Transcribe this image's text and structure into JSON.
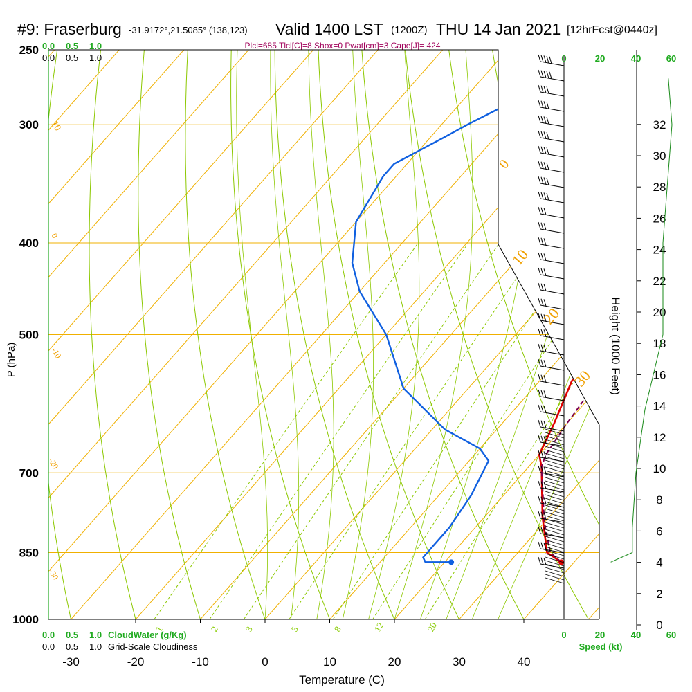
{
  "header": {
    "station": "#9: Fraserburg",
    "coords": "-31.9172°,21.5085° (138,123)",
    "valid": "Valid 1400 LST",
    "utc": "(1200Z)",
    "date": "THU 14 Jan 2021",
    "forecast": "[12hrFcst@0440z]"
  },
  "indices_line": "Plcl=685 Tlcl[C]=8 Shox=0 Pwat[cm]=3 Cape[J]= 424",
  "colors": {
    "temperature": "#e00000",
    "dewpoint": "#1060e0",
    "parcel": "#7a0050",
    "isotherm": "#f0b000",
    "dry_adiabat": "#8cc800",
    "mixing_ratio": "#8cc800",
    "axis_green": "#22aa22",
    "windspeed": "#1a8a1a"
  },
  "chart_data": {
    "type": "line",
    "title": "#9: Fraserburg",
    "xlabel": "Temperature (C)",
    "ylabel": "P (hPa)",
    "y2label": "Height (1000 Feet)",
    "y_scale": "log",
    "ylim": [
      1000,
      250
    ],
    "x_ticks": [
      -30,
      -20,
      -10,
      0,
      10,
      20,
      30,
      40
    ],
    "p_ticks": [
      250,
      300,
      400,
      500,
      700,
      850,
      1000
    ],
    "height_ticks": [
      0,
      2,
      4,
      6,
      8,
      10,
      12,
      14,
      16,
      18,
      20,
      22,
      24,
      26,
      28,
      30,
      32
    ],
    "isotherm_labels": [
      "10",
      "0",
      "-10",
      "-20",
      "-30",
      "0",
      "10",
      "20",
      "30"
    ],
    "mixing_ratio_labels": [
      "1",
      "2",
      "3",
      "5",
      "8",
      "12",
      "20"
    ],
    "cloud_axis": {
      "top_green": [
        "0.0",
        "0.5",
        "1.0"
      ],
      "top_black": [
        "0.0",
        "0.5",
        "1.0"
      ],
      "bottom_green": [
        "0.0",
        "0.5",
        "1.0"
      ],
      "bottom_black": [
        "0.0",
        "0.5",
        "1.0"
      ],
      "cloud_water_label": "CloudWater (g/Kg)",
      "cloudiness_label": "Grid-Scale Cloudiness"
    },
    "speed_axis": {
      "top_black": [
        "0",
        "20",
        "40"
      ],
      "top_green": [
        "20",
        "40",
        "60"
      ],
      "bottom_black": [
        "0",
        "20",
        "40"
      ],
      "bottom_green": [
        "20",
        "40",
        "60"
      ],
      "label": "Speed (kt)"
    },
    "series": [
      {
        "name": "Temperature",
        "points": [
          [
            38,
            870
          ],
          [
            34.5,
            850
          ],
          [
            29,
            780
          ],
          [
            22,
            690
          ],
          [
            20,
            670
          ],
          [
            18,
            620
          ],
          [
            15,
            560
          ],
          [
            14,
            500
          ],
          [
            13,
            470
          ],
          [
            10,
            400
          ],
          [
            8,
            360
          ],
          [
            5,
            320
          ],
          [
            2,
            300
          ],
          [
            -5,
            268
          ]
        ]
      },
      {
        "name": "Dewpoint",
        "points": [
          [
            21,
            870
          ],
          [
            17,
            870
          ],
          [
            16,
            860
          ],
          [
            16,
            850
          ],
          [
            16,
            800
          ],
          [
            15,
            740
          ],
          [
            13,
            680
          ],
          [
            10,
            660
          ],
          [
            2,
            630
          ],
          [
            -10,
            570
          ],
          [
            -20,
            500
          ],
          [
            -30,
            450
          ],
          [
            -35,
            420
          ],
          [
            -40,
            380
          ],
          [
            -42,
            340
          ],
          [
            -42,
            330
          ],
          [
            -38,
            310
          ],
          [
            -36,
            300
          ],
          [
            -30,
            275
          ],
          [
            -27,
            268
          ]
        ]
      },
      {
        "name": "Parcel",
        "points": [
          [
            38,
            870
          ],
          [
            35,
            850
          ],
          [
            30,
            790
          ],
          [
            22,
            690
          ],
          [
            21,
            670
          ],
          [
            20,
            620
          ],
          [
            19,
            560
          ],
          [
            17,
            500
          ],
          [
            15,
            460
          ],
          [
            12,
            400
          ],
          [
            9,
            370
          ]
        ]
      }
    ],
    "wind_speed_profile_kt": [
      [
        870,
        26
      ],
      [
        850,
        38
      ],
      [
        800,
        38
      ],
      [
        700,
        40
      ],
      [
        600,
        45
      ],
      [
        500,
        55
      ],
      [
        400,
        55
      ],
      [
        300,
        60
      ],
      [
        268,
        58
      ]
    ],
    "grid": true
  }
}
